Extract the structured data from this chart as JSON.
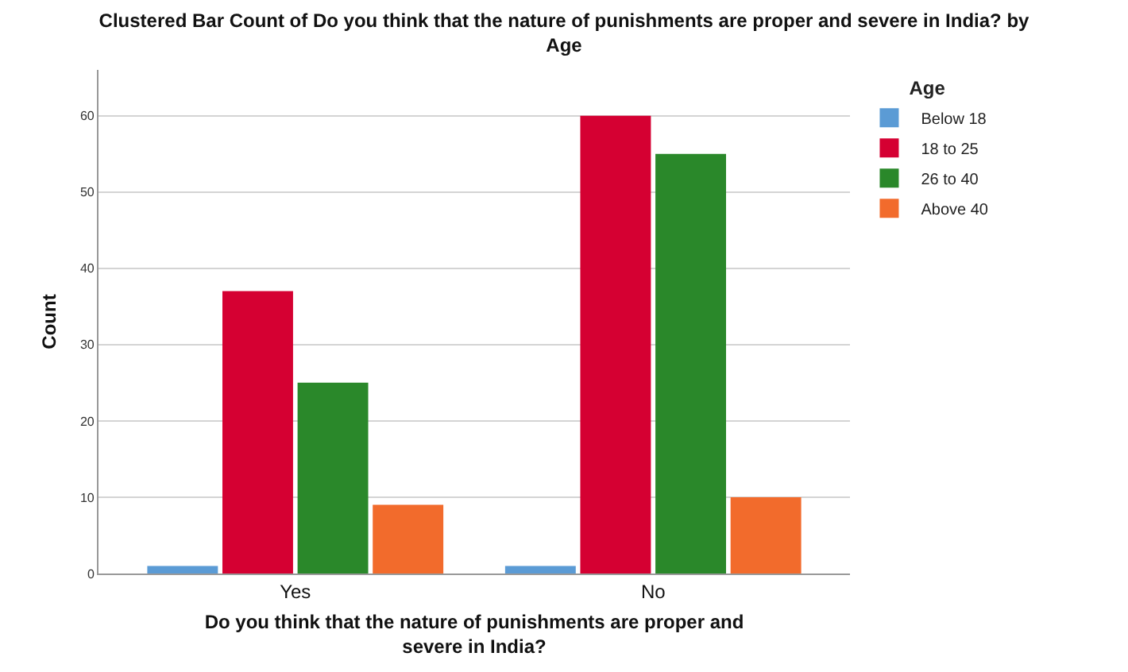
{
  "chart_data": {
    "type": "bar",
    "title": "Clustered Bar Count of Do you think that the nature of punishments are proper and severe in India? by Age",
    "xlabel": "Do you think that the nature of punishments are proper and severe in India?",
    "ylabel": "Count",
    "legend_title": "Age",
    "categories": [
      "Yes",
      "No"
    ],
    "series": [
      {
        "name": "Below 18",
        "color": "#5b9bd5",
        "values": [
          1,
          1
        ]
      },
      {
        "name": "18 to 25",
        "color": "#d50032",
        "values": [
          37,
          60
        ]
      },
      {
        "name": "26 to 40",
        "color": "#2a882a",
        "values": [
          25,
          55
        ]
      },
      {
        "name": "Above 40",
        "color": "#f26b2c",
        "values": [
          9,
          10
        ]
      }
    ],
    "ylim": [
      0,
      66
    ],
    "yticks": [
      0,
      10,
      20,
      30,
      40,
      50,
      60
    ],
    "grid": "y",
    "legend": "top right"
  }
}
